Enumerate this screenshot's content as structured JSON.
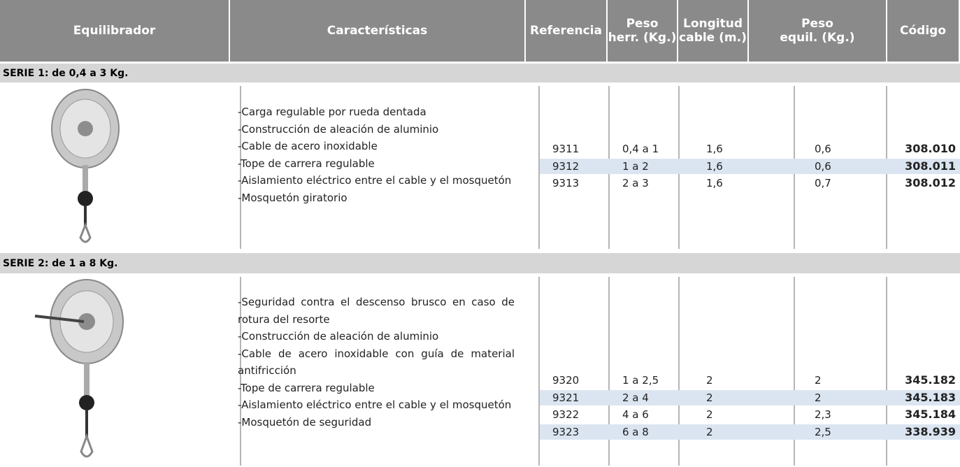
{
  "table": {
    "headers": [
      [
        "Equilibrador"
      ],
      [
        "Características"
      ],
      [
        "Referencia"
      ],
      [
        "Peso",
        "herr. (Kg.)"
      ],
      [
        "Longitud",
        "cable (m.)"
      ],
      [
        "Peso",
        "equil. (Kg.)"
      ],
      [
        "Código"
      ]
    ],
    "series": [
      {
        "title": "SERIE 1: de 0,4 a 3 Kg.",
        "features": [
          "-Carga regulable por rueda dentada",
          "-Construcción de aleación de aluminio",
          "-Cable de acero inoxidable",
          "-Tope de carrera regulable",
          "-Aislamiento eléctrico entre el cable y el mosquetón",
          "-Mosquetón giratorio"
        ],
        "rows": [
          [
            "9311",
            "0,4 a 1",
            "1,6",
            "0,6",
            "308.010"
          ],
          [
            "9312",
            "1 a 2",
            "1,6",
            "0,6",
            "308.011"
          ],
          [
            "9313",
            "2 a 3",
            "1,6",
            "0,7",
            "308.012"
          ]
        ]
      },
      {
        "title": "SERIE 2: de 1 a 8 Kg.",
        "features": [
          "-Seguridad contra el descenso brusco en caso de rotura del resorte",
          "-Construcción de aleación de aluminio",
          "-Cable de acero inoxidable con guía de material antifricción",
          "-Tope de carrera regulable",
          "-Aislamiento eléctrico entre el cable y el mosquetón",
          "-Mosquetón de seguridad"
        ],
        "rows": [
          [
            "9320",
            "1 a 2,5",
            "2",
            "2",
            "345.182"
          ],
          [
            "9321",
            "2 a 4",
            "2",
            "2",
            "345.183"
          ],
          [
            "9322",
            "4 a 6",
            "2",
            "2,3",
            "345.184"
          ],
          [
            "9323",
            "6 a 8",
            "2",
            "2,5",
            "338.939"
          ]
        ]
      }
    ]
  }
}
